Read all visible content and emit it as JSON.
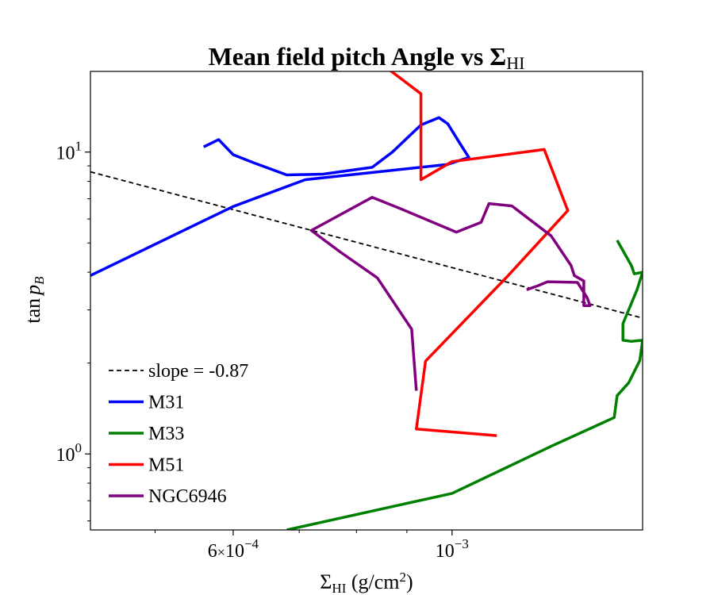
{
  "chart_data": {
    "type": "line",
    "title": "Mean field pitch Angle vs Σ",
    "title_sub": "HI",
    "xlabel_main": "Σ",
    "xlabel_sub": "HI",
    "xlabel_unit": " (g/cm",
    "xlabel_sup": "2",
    "xlabel_close": ")",
    "ylabel_main": "tan",
    "ylabel_p": "p",
    "ylabel_sub": "B",
    "x_scale": "log",
    "y_scale": "log",
    "xlim": [
      0.00043,
      0.00156
    ],
    "ylim": [
      0.56,
      18.5
    ],
    "x_ticks": [
      {
        "value": 0.0006,
        "mantissa": "6",
        "times": "×",
        "base": "10",
        "exp": "−4"
      },
      {
        "value": 0.001,
        "mantissa": "",
        "times": "",
        "base": "10",
        "exp": "−3"
      }
    ],
    "x_minor_ticks": [
      0.0005,
      0.0007,
      0.0008,
      0.0009
    ],
    "y_ticks": [
      {
        "value": 1,
        "base": "10",
        "exp": "0"
      },
      {
        "value": 10,
        "base": "10",
        "exp": "1"
      }
    ],
    "y_minor_ticks": [
      0.6,
      0.7,
      0.8,
      0.9,
      2,
      3,
      4,
      5,
      6,
      7,
      8,
      9
    ],
    "legend_position": "lower-left",
    "grid": false,
    "series": [
      {
        "name": "slope = -0.87",
        "color": "#000000",
        "style": "dashed",
        "x": [
          0.00043,
          0.00156
        ],
        "y": [
          8.6,
          2.82
        ]
      },
      {
        "name": "M31",
        "color": "#0000ff",
        "style": "solid",
        "x": [
          0.00043,
          0.0006,
          0.00071,
          0.00099,
          0.00104,
          0.00102,
          0.00099,
          0.00097,
          0.00093,
          0.00087,
          0.00083,
          0.00074,
          0.00068,
          0.00063,
          0.0006,
          0.00058,
          0.00056
        ],
        "y": [
          3.9,
          6.6,
          8.1,
          9.1,
          9.6,
          10.6,
          12.4,
          13.0,
          12.3,
          10.0,
          8.9,
          8.45,
          8.4,
          9.2,
          9.8,
          11.0,
          10.4
        ]
      },
      {
        "name": "M33",
        "color": "#008000",
        "style": "solid",
        "x": [
          0.00068,
          0.001,
          0.00126,
          0.00146,
          0.00147,
          0.00151,
          0.00155,
          0.00156,
          0.00152,
          0.00149,
          0.00149,
          0.00154,
          0.00156,
          0.00153,
          0.00152,
          0.00147
        ],
        "y": [
          0.56,
          0.74,
          1.06,
          1.32,
          1.56,
          1.72,
          2.04,
          2.38,
          2.36,
          2.38,
          2.7,
          3.5,
          4.0,
          3.95,
          4.2,
          5.1
        ]
      },
      {
        "name": "M51",
        "color": "#ff0000",
        "style": "solid",
        "x": [
          0.00111,
          0.00092,
          0.00094,
          0.00114,
          0.00131,
          0.00124,
          0.001,
          0.00093,
          0.00093,
          0.00082
        ],
        "y": [
          1.15,
          1.21,
          2.03,
          3.9,
          6.4,
          10.2,
          9.3,
          8.1,
          15.6,
          21.3
        ]
      },
      {
        "name": "NGC6946",
        "color": "#800080",
        "style": "solid",
        "x": [
          0.00092,
          0.00091,
          0.00084,
          0.00077,
          0.00072,
          0.00083,
          0.00089,
          0.00101,
          0.00107,
          0.00109,
          0.00115,
          0.00126,
          0.00132,
          0.00133,
          0.00136,
          0.00136,
          0.00138,
          0.00137,
          0.00134,
          0.00125,
          0.00122,
          0.00119
        ],
        "y": [
          1.62,
          2.59,
          3.83,
          4.67,
          5.5,
          7.08,
          6.46,
          5.43,
          5.85,
          6.75,
          6.63,
          5.28,
          4.21,
          3.9,
          3.74,
          3.1,
          3.1,
          3.3,
          3.7,
          3.72,
          3.6,
          3.5
        ]
      }
    ]
  }
}
